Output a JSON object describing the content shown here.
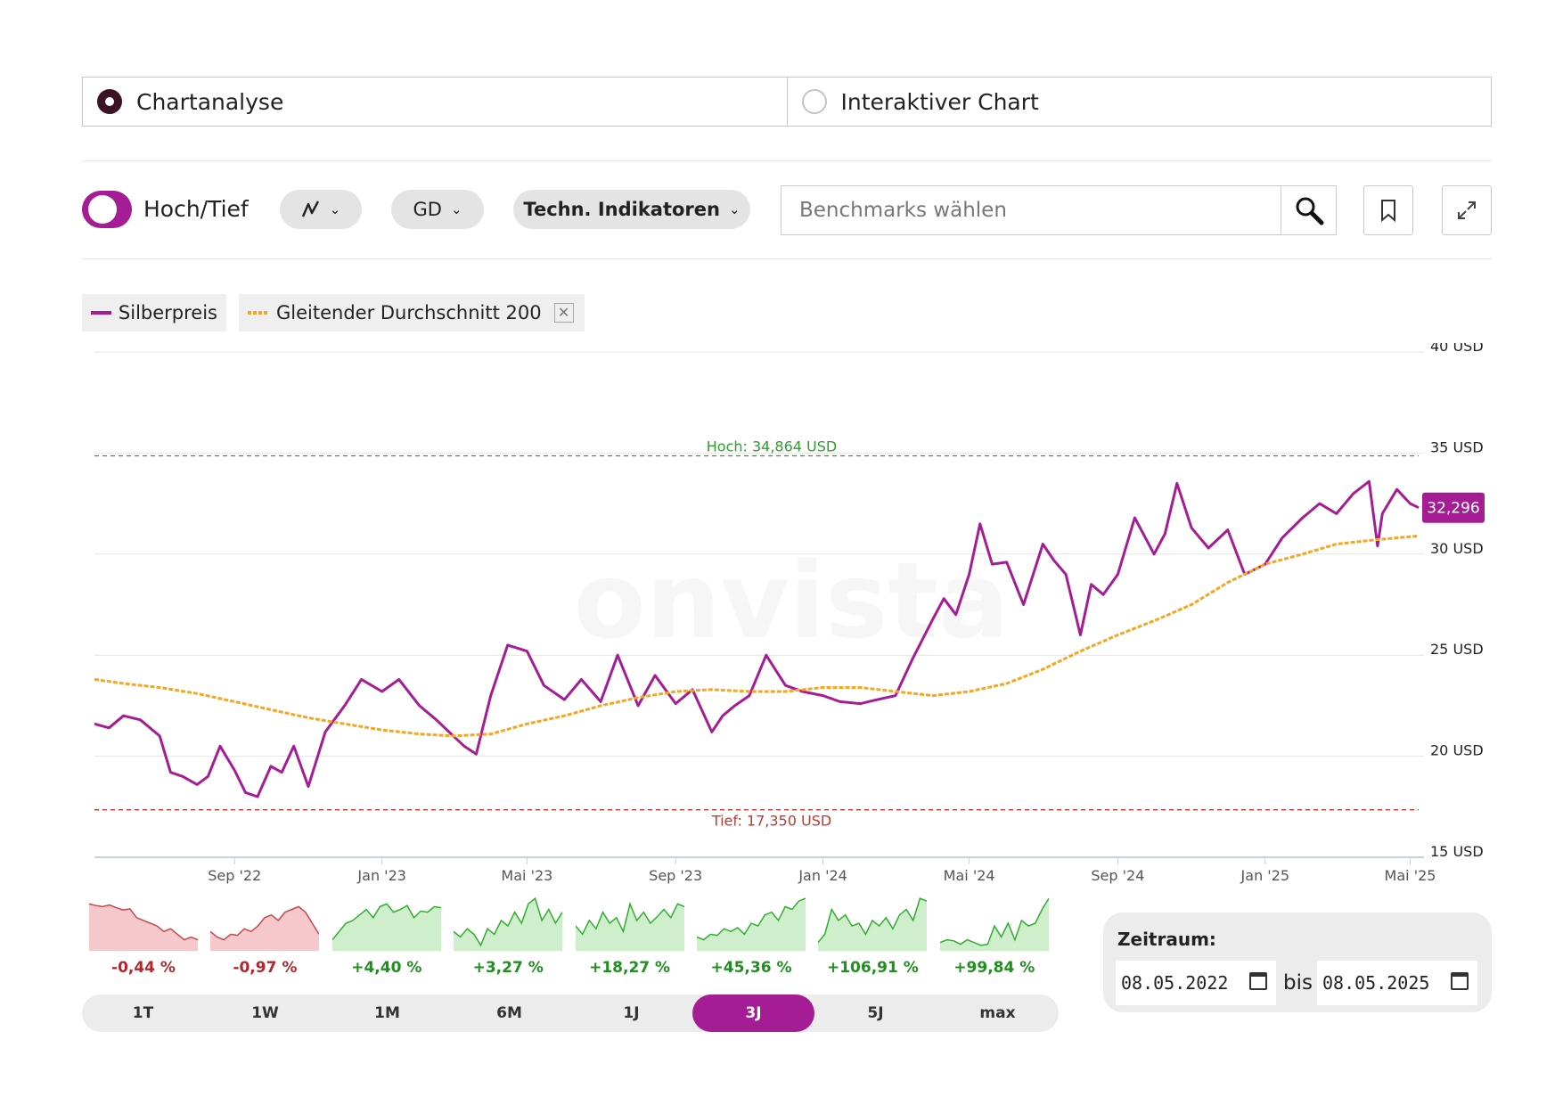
{
  "mode": {
    "options": [
      "Chartanalyse",
      "Interaktiver Chart"
    ],
    "selected": "Chartanalyse"
  },
  "toolbar": {
    "toggle_label": "Hoch/Tief",
    "toggle_on": true,
    "chart_type_icon": "line-chart-icon",
    "gd_label": "GD",
    "indicators_label": "Techn. Indikatoren",
    "benchmark_placeholder": "Benchmarks wählen",
    "search_icon": "search-icon",
    "bookmark_icon": "bookmark-icon",
    "expand_icon": "expand-icon"
  },
  "legend": [
    {
      "label": "Silberpreis",
      "color": "#a51d95",
      "style": "solid"
    },
    {
      "label": "Gleitender Durchschnitt 200",
      "color": "#f5a623",
      "style": "dotted",
      "removable": true
    }
  ],
  "watermark": "onvista",
  "chart_data": {
    "type": "line",
    "y_unit": "USD",
    "ylim": [
      15,
      40
    ],
    "y_ticks": [
      15,
      20,
      25,
      30,
      35,
      40
    ],
    "y_tick_labels": [
      "15 USD",
      "20 USD",
      "25 USD",
      "30 USD",
      "35 USD",
      "40 USD"
    ],
    "x_range": [
      "2022-05-08",
      "2025-05-08"
    ],
    "x_ticks": [
      "2022-09-01",
      "2023-01-01",
      "2023-05-01",
      "2023-09-01",
      "2024-01-01",
      "2024-05-01",
      "2024-09-01",
      "2025-01-01",
      "2025-05-01"
    ],
    "x_tick_labels": [
      "Sep '22",
      "Jan '23",
      "Mai '23",
      "Sep '23",
      "Jan '24",
      "Mai '24",
      "Sep '24",
      "Jan '25",
      "Mai '25"
    ],
    "grid": true,
    "high": {
      "value": 34.864,
      "label": "Hoch: 34,864 USD",
      "color": "#2e9e2e"
    },
    "low": {
      "value": 17.35,
      "label": "Tief: 17,350 USD",
      "color": "#c0392b"
    },
    "last": {
      "value": 32.296,
      "label": "32,296",
      "color": "#a51d95"
    },
    "series": [
      {
        "name": "Silberpreis",
        "color": "#a51d95",
        "x": [
          "2022-05-08",
          "2022-05-20",
          "2022-06-01",
          "2022-06-15",
          "2022-07-01",
          "2022-07-10",
          "2022-07-20",
          "2022-08-01",
          "2022-08-10",
          "2022-08-20",
          "2022-09-01",
          "2022-09-10",
          "2022-09-20",
          "2022-10-01",
          "2022-10-10",
          "2022-10-20",
          "2022-11-01",
          "2022-11-15",
          "2022-12-01",
          "2022-12-15",
          "2023-01-01",
          "2023-01-15",
          "2023-02-01",
          "2023-02-15",
          "2023-03-01",
          "2023-03-10",
          "2023-03-20",
          "2023-04-01",
          "2023-04-15",
          "2023-05-01",
          "2023-05-15",
          "2023-06-01",
          "2023-06-15",
          "2023-07-01",
          "2023-07-15",
          "2023-08-01",
          "2023-08-15",
          "2023-09-01",
          "2023-09-15",
          "2023-10-01",
          "2023-10-10",
          "2023-10-20",
          "2023-11-01",
          "2023-11-15",
          "2023-12-01",
          "2023-12-15",
          "2024-01-01",
          "2024-01-15",
          "2024-02-01",
          "2024-02-15",
          "2024-03-01",
          "2024-03-15",
          "2024-04-01",
          "2024-04-10",
          "2024-04-20",
          "2024-05-01",
          "2024-05-10",
          "2024-05-20",
          "2024-06-01",
          "2024-06-15",
          "2024-07-01",
          "2024-07-10",
          "2024-07-20",
          "2024-08-01",
          "2024-08-10",
          "2024-08-20",
          "2024-09-01",
          "2024-09-15",
          "2024-10-01",
          "2024-10-10",
          "2024-10-20",
          "2024-11-01",
          "2024-11-15",
          "2024-12-01",
          "2024-12-15",
          "2025-01-01",
          "2025-01-15",
          "2025-02-01",
          "2025-02-15",
          "2025-03-01",
          "2025-03-15",
          "2025-03-28",
          "2025-04-04",
          "2025-04-08",
          "2025-04-20",
          "2025-05-01",
          "2025-05-08"
        ],
        "y": [
          21.6,
          21.4,
          22.0,
          21.8,
          21.0,
          19.2,
          19.0,
          18.6,
          19.0,
          20.5,
          19.3,
          18.2,
          18.0,
          19.5,
          19.2,
          20.5,
          18.5,
          21.2,
          22.5,
          23.8,
          23.2,
          23.8,
          22.5,
          21.8,
          21.0,
          20.5,
          20.1,
          23.0,
          25.5,
          25.2,
          23.5,
          22.8,
          23.8,
          22.7,
          25.0,
          22.5,
          24.0,
          22.6,
          23.3,
          21.2,
          22.0,
          22.5,
          23.0,
          25.0,
          23.5,
          23.2,
          23.0,
          22.7,
          22.6,
          22.8,
          23.0,
          24.8,
          26.8,
          27.8,
          27.0,
          29.0,
          31.5,
          29.5,
          29.6,
          27.5,
          30.5,
          29.7,
          29.0,
          26.0,
          28.5,
          28.0,
          29.0,
          31.8,
          30.0,
          31.0,
          33.5,
          31.3,
          30.3,
          31.2,
          29.0,
          29.5,
          30.8,
          31.8,
          32.5,
          32.0,
          33.0,
          33.6,
          30.4,
          32.0,
          33.2,
          32.5,
          32.296
        ]
      },
      {
        "name": "Gleitender Durchschnitt 200",
        "color": "#f5a623",
        "x": [
          "2022-05-08",
          "2022-06-01",
          "2022-07-01",
          "2022-08-01",
          "2022-09-01",
          "2022-10-01",
          "2022-11-01",
          "2022-12-01",
          "2023-01-01",
          "2023-02-01",
          "2023-03-01",
          "2023-04-01",
          "2023-05-01",
          "2023-06-01",
          "2023-07-01",
          "2023-08-01",
          "2023-09-01",
          "2023-10-01",
          "2023-11-01",
          "2023-12-01",
          "2024-01-01",
          "2024-02-01",
          "2024-03-01",
          "2024-04-01",
          "2024-05-01",
          "2024-06-01",
          "2024-07-01",
          "2024-08-01",
          "2024-09-01",
          "2024-10-01",
          "2024-11-01",
          "2024-12-01",
          "2025-01-01",
          "2025-02-01",
          "2025-03-01",
          "2025-04-01",
          "2025-05-08"
        ],
        "y": [
          23.8,
          23.6,
          23.4,
          23.1,
          22.7,
          22.3,
          21.9,
          21.6,
          21.3,
          21.1,
          21.0,
          21.1,
          21.6,
          22.0,
          22.5,
          22.9,
          23.2,
          23.3,
          23.2,
          23.2,
          23.4,
          23.4,
          23.2,
          23.0,
          23.2,
          23.6,
          24.3,
          25.2,
          26.0,
          26.7,
          27.5,
          28.6,
          29.5,
          30.0,
          30.5,
          30.7,
          30.9
        ]
      }
    ]
  },
  "period_tiles": [
    {
      "label": "-0,44 %",
      "positive": false,
      "spark": [
        0.85,
        0.82,
        0.8,
        0.83,
        0.78,
        0.74,
        0.76,
        0.6,
        0.55,
        0.5,
        0.45,
        0.35,
        0.4,
        0.3,
        0.2,
        0.25,
        0.2
      ]
    },
    {
      "label": "-0,97 %",
      "positive": false,
      "spark": [
        0.35,
        0.25,
        0.2,
        0.3,
        0.28,
        0.4,
        0.35,
        0.45,
        0.6,
        0.65,
        0.55,
        0.7,
        0.75,
        0.8,
        0.7,
        0.5,
        0.3
      ]
    },
    {
      "label": "+4,40 %",
      "positive": true,
      "spark": [
        0.2,
        0.35,
        0.5,
        0.55,
        0.65,
        0.75,
        0.6,
        0.8,
        0.85,
        0.7,
        0.75,
        0.82,
        0.6,
        0.72,
        0.7,
        0.8,
        0.78
      ]
    },
    {
      "label": "+3,27 %",
      "positive": true,
      "spark": [
        0.35,
        0.25,
        0.4,
        0.3,
        0.1,
        0.4,
        0.3,
        0.55,
        0.45,
        0.7,
        0.5,
        0.85,
        0.95,
        0.55,
        0.75,
        0.5,
        0.7
      ]
    },
    {
      "label": "+18,27 %",
      "positive": true,
      "spark": [
        0.45,
        0.3,
        0.55,
        0.4,
        0.7,
        0.5,
        0.6,
        0.35,
        0.85,
        0.55,
        0.7,
        0.5,
        0.62,
        0.75,
        0.6,
        0.85,
        0.8
      ]
    },
    {
      "label": "+45,36 %",
      "positive": true,
      "spark": [
        0.25,
        0.2,
        0.3,
        0.28,
        0.4,
        0.35,
        0.42,
        0.3,
        0.5,
        0.45,
        0.65,
        0.7,
        0.55,
        0.8,
        0.75,
        0.9,
        0.95
      ]
    },
    {
      "label": "+106,91 %",
      "positive": true,
      "spark": [
        0.15,
        0.3,
        0.75,
        0.55,
        0.65,
        0.45,
        0.5,
        0.3,
        0.55,
        0.45,
        0.6,
        0.4,
        0.65,
        0.75,
        0.55,
        0.95,
        0.9
      ]
    },
    {
      "label": "+99,84 %",
      "positive": true,
      "spark": [
        0.15,
        0.2,
        0.18,
        0.12,
        0.2,
        0.15,
        0.1,
        0.12,
        0.45,
        0.25,
        0.5,
        0.2,
        0.55,
        0.45,
        0.5,
        0.75,
        0.95
      ]
    }
  ],
  "periods": [
    "1T",
    "1W",
    "1M",
    "6M",
    "1J",
    "3J",
    "5J",
    "max"
  ],
  "active_period": "3J",
  "range": {
    "title": "Zeitraum:",
    "from": "08.05.2022",
    "to_label": "bis",
    "to": "08.05.2025"
  }
}
